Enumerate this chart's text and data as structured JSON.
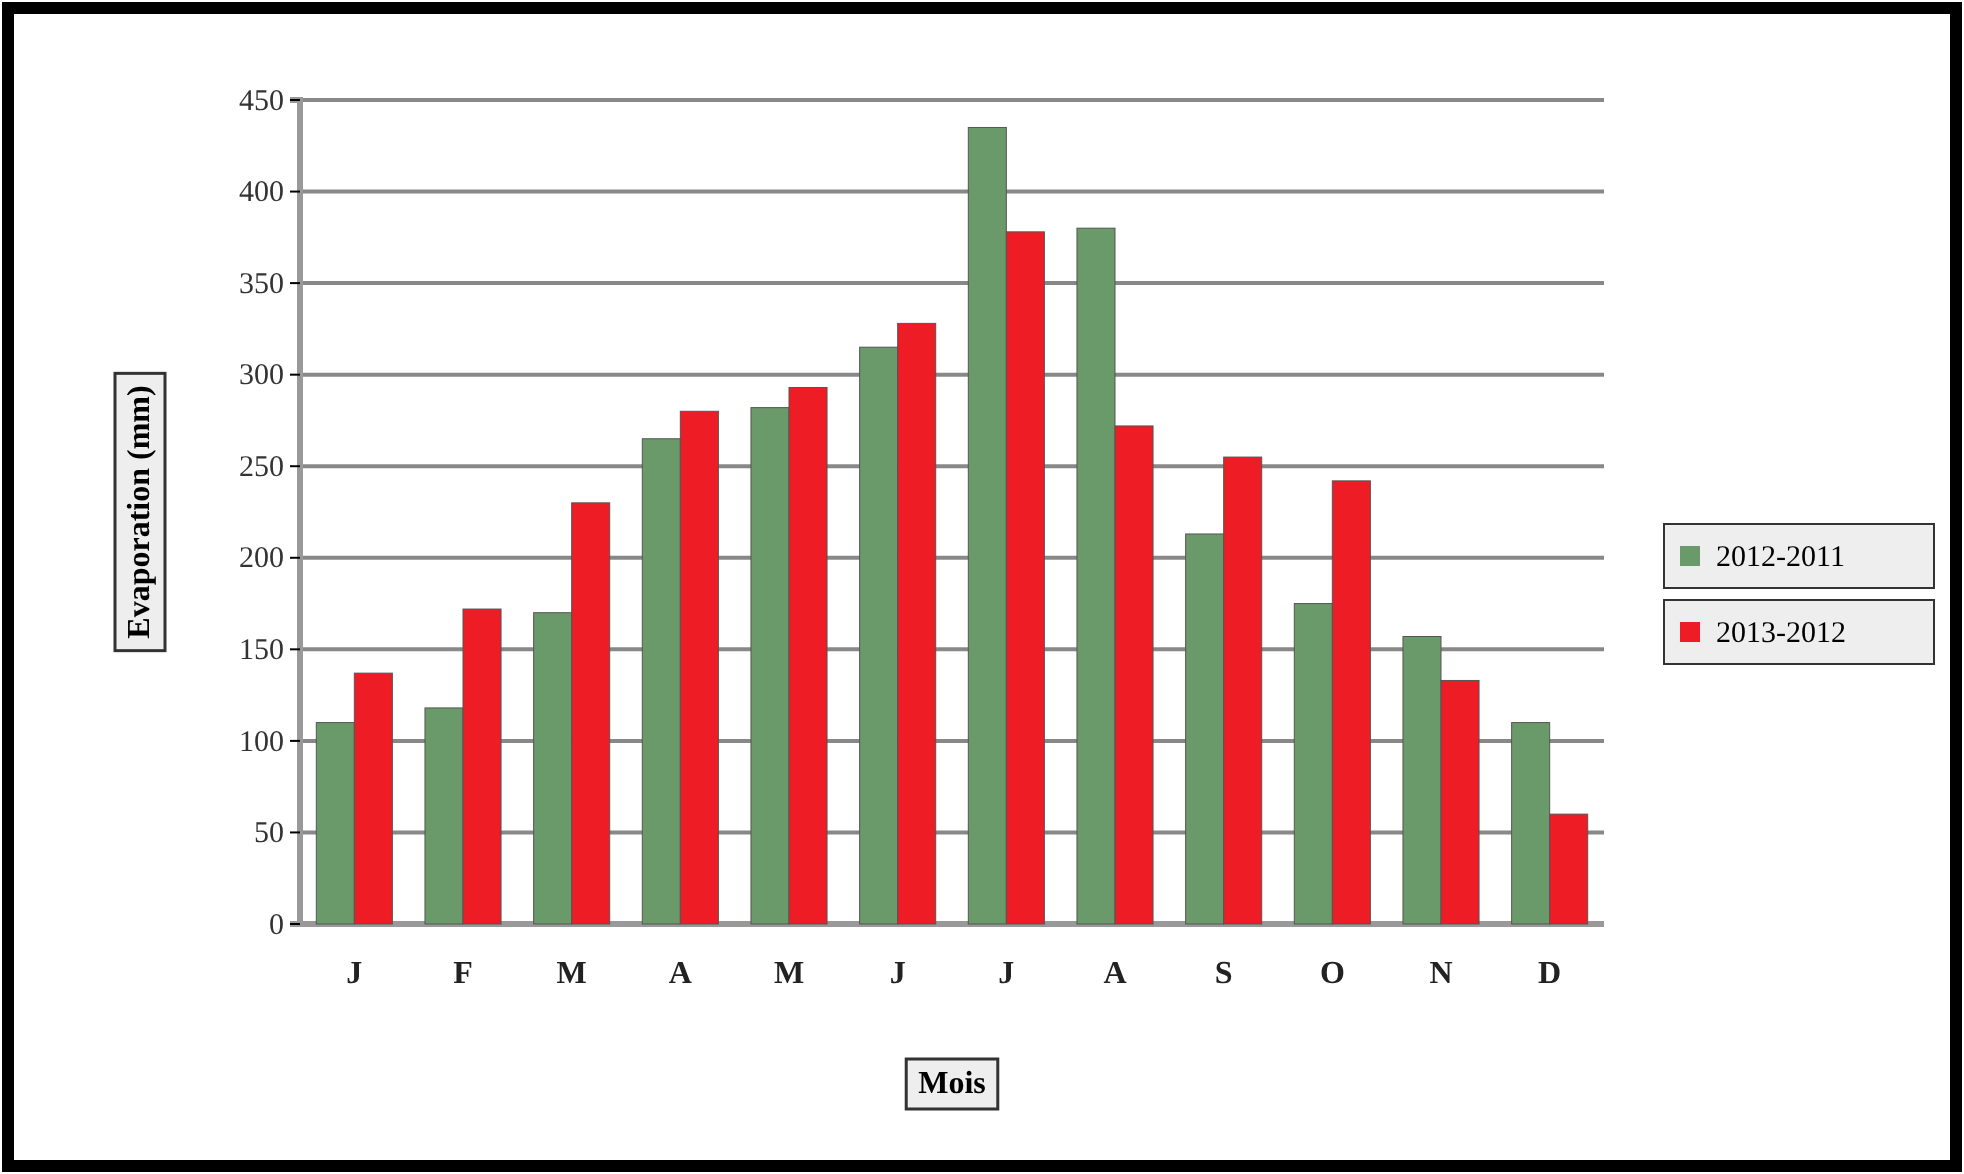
{
  "chart_data": {
    "type": "bar",
    "xlabel": "Mois",
    "ylabel": "Evaporation (mm)",
    "categories": [
      "J",
      "F",
      "M",
      "A",
      "M",
      "J",
      "J",
      "A",
      "S",
      "O",
      "N",
      "D"
    ],
    "series": [
      {
        "name": "2012-2011",
        "color": "#6a9a6a",
        "values": [
          110,
          118,
          170,
          265,
          282,
          315,
          435,
          380,
          213,
          175,
          157,
          110
        ]
      },
      {
        "name": "2013-2012",
        "color": "#ee1c25",
        "values": [
          137,
          172,
          230,
          280,
          293,
          328,
          378,
          272,
          255,
          242,
          133,
          60
        ]
      }
    ],
    "ylim": [
      0,
      450
    ],
    "yticks": [
      0,
      50,
      100,
      150,
      200,
      250,
      300,
      350,
      400,
      450
    ],
    "grid": "y",
    "legend": "right"
  }
}
